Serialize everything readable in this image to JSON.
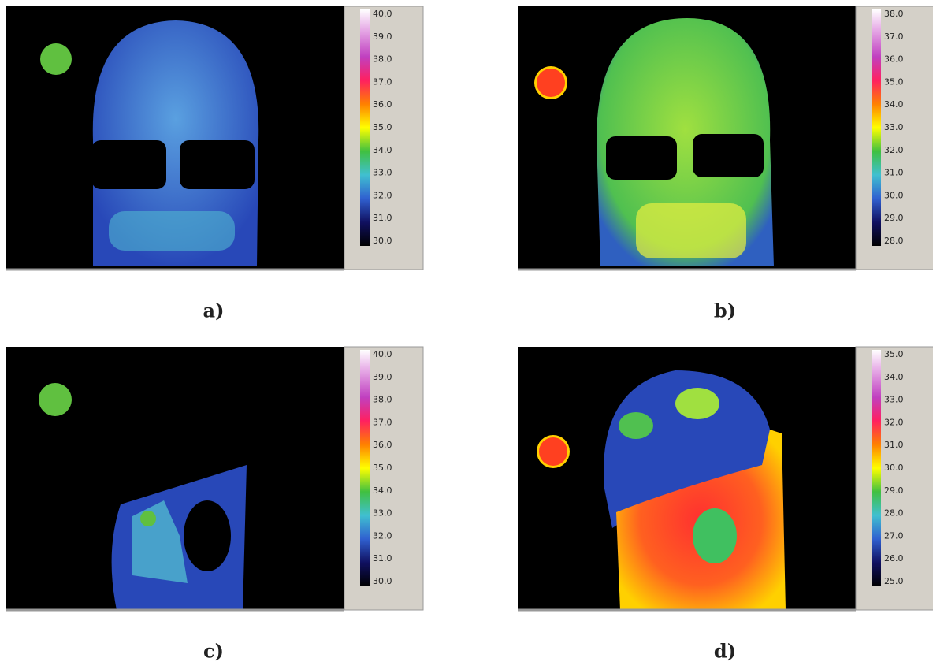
{
  "panels": [
    {
      "label": "a)",
      "scale": [
        "40.0",
        "39.0",
        "38.0",
        "37.0",
        "36.0",
        "35.0",
        "34.0",
        "33.0",
        "32.0",
        "31.0",
        "30.0"
      ]
    },
    {
      "label": "b)",
      "scale": [
        "38.0",
        "37.0",
        "36.0",
        "35.0",
        "34.0",
        "33.0",
        "32.0",
        "31.0",
        "30.0",
        "29.0",
        "28.0"
      ]
    },
    {
      "label": "c)",
      "scale": [
        "40.0",
        "39.0",
        "38.0",
        "37.0",
        "36.0",
        "35.0",
        "34.0",
        "33.0",
        "32.0",
        "31.0",
        "30.0"
      ]
    },
    {
      "label": "d)",
      "scale": [
        "35.0",
        "34.0",
        "33.0",
        "32.0",
        "31.0",
        "30.0",
        "29.0",
        "28.0",
        "27.0",
        "26.0",
        "25.0"
      ]
    }
  ]
}
